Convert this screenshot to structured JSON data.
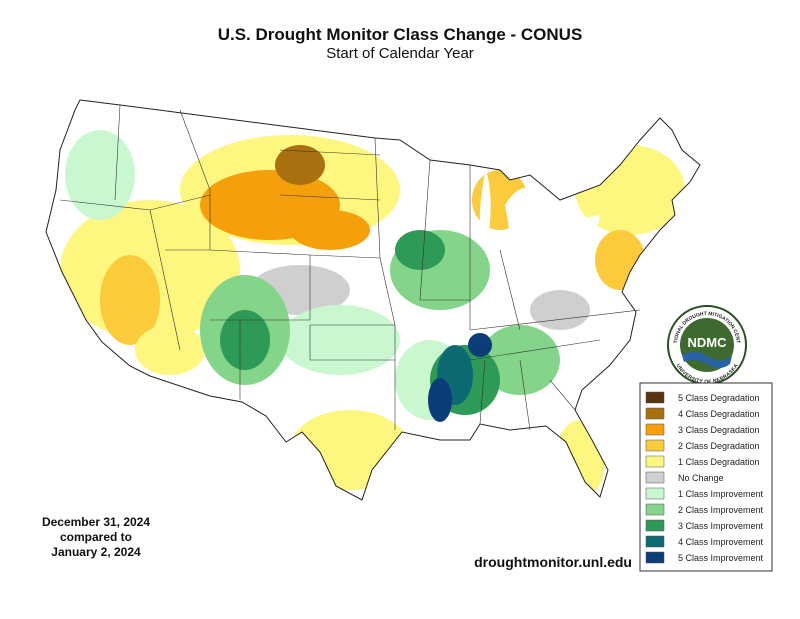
{
  "header": {
    "title": "U.S. Drought Monitor Class Change - CONUS",
    "subtitle": "Start of Calendar Year"
  },
  "legend": {
    "items": [
      {
        "label": "5 Class Degradation",
        "color": "#5a3410"
      },
      {
        "label": "4 Class Degradation",
        "color": "#a8700f"
      },
      {
        "label": "3 Class Degradation",
        "color": "#f59f0a"
      },
      {
        "label": "2 Class Degradation",
        "color": "#fbcb3c"
      },
      {
        "label": "1 Class Degradation",
        "color": "#fdf77f"
      },
      {
        "label": "No Change",
        "color": "#cfcfcf"
      },
      {
        "label": "1 Class Improvement",
        "color": "#c9f7cf"
      },
      {
        "label": "2 Class Improvement",
        "color": "#84d48a"
      },
      {
        "label": "3 Class Improvement",
        "color": "#2e9a58"
      },
      {
        "label": "4 Class Improvement",
        "color": "#0e6a72"
      },
      {
        "label": "5 Class Improvement",
        "color": "#0d3d78"
      }
    ]
  },
  "date_note": [
    "December 31, 2024",
    "compared to",
    "January 2, 2024"
  ],
  "source": "droughtmonitor.unl.edu",
  "logo": {
    "text": "NDMC",
    "ring_top": "NATIONAL DROUGHT MITIGATION CENTER",
    "ring_bottom": "UNIVERSITY OF NEBRASKA"
  }
}
